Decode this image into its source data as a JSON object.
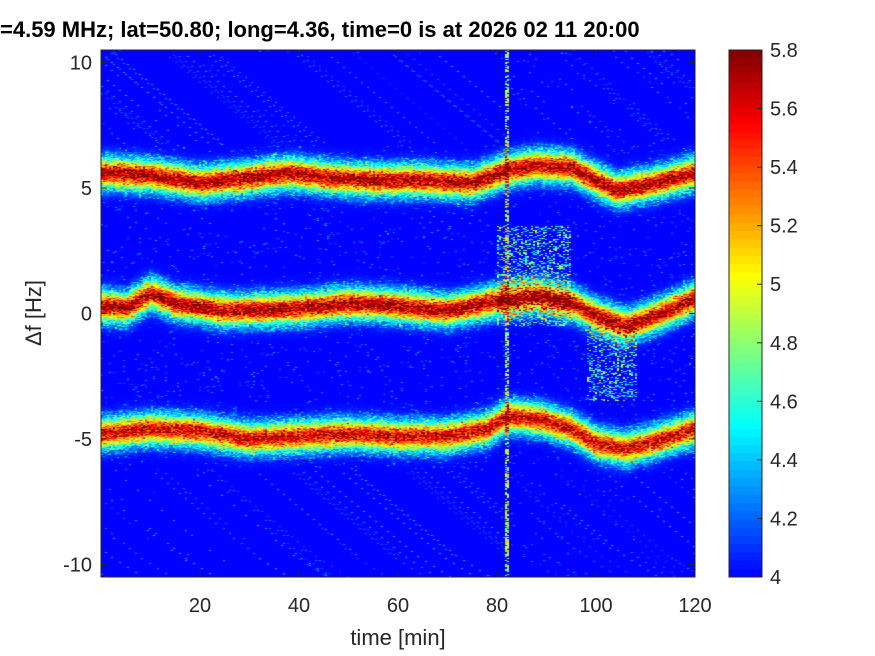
{
  "chart_data": {
    "type": "heatmap",
    "title": "=4.59 MHz;  lat=50.80; long=4.36, time=0 is at 2026 02 11 20:00",
    "xlabel": "time [min]",
    "ylabel": "Δf [Hz]",
    "xlim": [
      0,
      120
    ],
    "ylim": [
      -10.5,
      10.5
    ],
    "x_ticks": [
      20,
      40,
      60,
      80,
      100,
      120
    ],
    "x_tick_labels": [
      "20",
      "40",
      "60",
      "80",
      "100",
      "120"
    ],
    "y_ticks": [
      10,
      5,
      0,
      -5,
      -10
    ],
    "y_tick_labels": [
      "10",
      "5",
      "0",
      "-5",
      "-10"
    ],
    "colorbar": {
      "colormap": "jet",
      "clim": [
        4,
        5.8
      ],
      "ticks": [
        5.8,
        5.6,
        5.4,
        5.2,
        5,
        4.8,
        4.6,
        4.4,
        4.2,
        4
      ],
      "tick_labels": [
        "5.8",
        "5.6",
        "5.4",
        "5.2",
        "5",
        "4.8",
        "4.6",
        "4.4",
        "4.2",
        "4"
      ]
    },
    "background_value": 4.0,
    "series": [
      {
        "name": "upper",
        "peak": 5.8,
        "x": [
          0,
          10,
          20,
          30,
          38,
          46,
          55,
          65,
          75,
          82,
          88,
          95,
          104,
          110,
          120
        ],
        "y": [
          5.6,
          5.5,
          5.2,
          5.4,
          5.6,
          5.4,
          5.3,
          5.3,
          5.2,
          5.7,
          5.9,
          5.8,
          4.9,
          5.1,
          5.6
        ]
      },
      {
        "name": "middle",
        "peak": 5.8,
        "x": [
          0,
          5,
          10,
          15,
          25,
          40,
          50,
          60,
          70,
          80,
          88,
          95,
          100,
          106,
          112,
          120
        ],
        "y": [
          0.3,
          0.2,
          0.8,
          0.4,
          0.1,
          0.2,
          0.4,
          0.3,
          0.1,
          0.5,
          0.7,
          0.4,
          -0.1,
          -0.5,
          -0.1,
          0.6
        ]
      },
      {
        "name": "lower",
        "peak": 5.7,
        "x": [
          0,
          10,
          20,
          30,
          40,
          50,
          60,
          70,
          78,
          82,
          88,
          95,
          100,
          106,
          112,
          120
        ],
        "y": [
          -4.8,
          -4.6,
          -4.7,
          -5.0,
          -4.9,
          -4.8,
          -4.9,
          -4.9,
          -4.6,
          -4.1,
          -4.2,
          -4.6,
          -5.2,
          -5.4,
          -5.1,
          -4.6
        ]
      }
    ],
    "annotations": [
      {
        "type": "vertical_broadband_feature",
        "x": 82,
        "y_range": [
          -10.5,
          10.5
        ]
      },
      {
        "type": "diffuse_spread",
        "x_range": [
          80,
          95
        ],
        "y_range": [
          -0.5,
          3.5
        ]
      },
      {
        "type": "diffuse_spread",
        "x_range": [
          98,
          108
        ],
        "y_range": [
          -3.5,
          -0.5
        ]
      }
    ]
  }
}
